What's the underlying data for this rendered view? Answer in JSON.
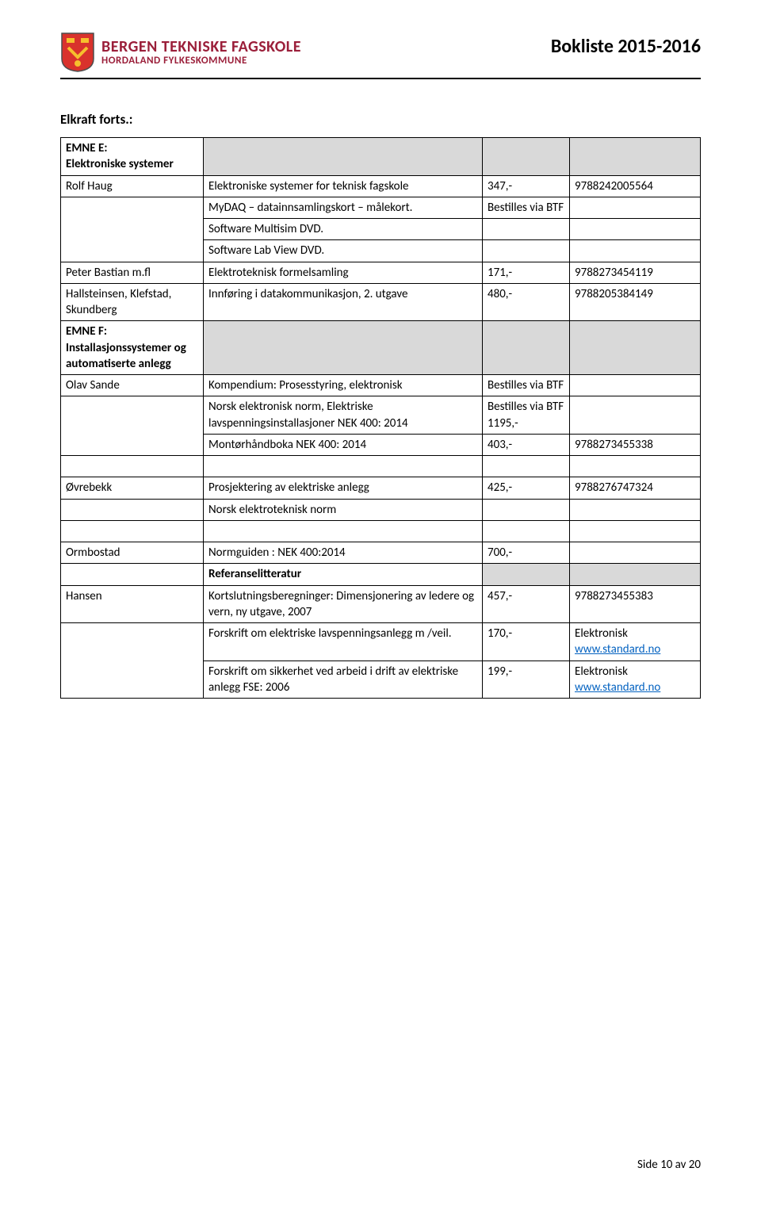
{
  "header": {
    "org_title": "BERGEN TEKNISKE FAGSKOLE",
    "org_sub": "HORDALAND FYLKESKOMMUNE",
    "booklist": "Bokliste 2015-2016",
    "shield_colors": {
      "main": "#d9322c",
      "accent": "#f6c02d",
      "border": "#4d4d4d"
    }
  },
  "section_heading": "Elkraft forts.:",
  "rows": [
    {
      "author": "EMNE E:\nElektroniske systemer",
      "author_bold": true,
      "title": "",
      "price": "",
      "isbn": "",
      "gray_cells": [
        "title",
        "price",
        "isbn"
      ]
    },
    {
      "author": "Rolf Haug",
      "title": "Elektroniske systemer for teknisk fagskole",
      "price": "347,-",
      "isbn": "9788242005564"
    },
    {
      "author_rowspan": 3,
      "author": "",
      "subrows": [
        {
          "title": "MyDAQ – datainnsamlingskort – målekort.",
          "price": "Bestilles via BTF",
          "isbn": ""
        },
        {
          "title": "Software Multisim DVD.",
          "price": "",
          "isbn": ""
        },
        {
          "title": "Software Lab View DVD.",
          "price": "",
          "isbn": ""
        }
      ]
    },
    {
      "author": "Peter Bastian m.fl",
      "title": "Elektroteknisk formelsamling",
      "price": "171,-",
      "isbn": "9788273454119"
    },
    {
      "author": "Hallsteinsen,  Klefstad, Skundberg",
      "title": "Innføring i datakommunikasjon, 2. utgave",
      "price": "480,-",
      "isbn": "9788205384149"
    },
    {
      "author": "EMNE F:\nInstallasjonssystemer og automatiserte anlegg",
      "author_bold": true,
      "title": "",
      "price": "",
      "isbn": "",
      "gray_cells": [
        "title",
        "price",
        "isbn"
      ]
    },
    {
      "author": "Olav Sande",
      "title": "Kompendium: Prosesstyring, elektronisk",
      "price": "Bestilles via BTF",
      "isbn": ""
    },
    {
      "author_rowspan": 2,
      "author": "",
      "subrows": [
        {
          "title": "Norsk elektronisk norm, Elektriske lavspenningsinstallasjoner NEK 400: 2014",
          "price": "Bestilles via BTF\n1195,-",
          "isbn": ""
        },
        {
          "title": "Montørhåndboka NEK 400: 2014",
          "price": "403,-",
          "isbn": "9788273455338"
        }
      ]
    },
    {
      "spacer": true
    },
    {
      "author": "Øvrebekk",
      "title": "Prosjektering av elektriske anlegg",
      "price": "425,-",
      "isbn": "9788276747324"
    },
    {
      "author_rowspan": 1,
      "author": "",
      "subrows": [
        {
          "title": "Norsk elektroteknisk norm",
          "price": "",
          "isbn": ""
        }
      ]
    },
    {
      "spacer": true
    },
    {
      "author": "Ormbostad",
      "title": "Normguiden : NEK 400:2014",
      "price": "700,-",
      "isbn": ""
    },
    {
      "author_rowspan": 1,
      "author": "",
      "subrows": [
        {
          "title": "Referanselitteratur",
          "title_bold": true,
          "price": "",
          "isbn": "",
          "gray_cells": [
            "price",
            "isbn"
          ]
        }
      ]
    },
    {
      "author": "Hansen",
      "title": "Kortslutningsberegninger: Dimensjonering av ledere og vern, ny utgave, 2007",
      "price": "457,-",
      "isbn": "9788273455383"
    },
    {
      "author_rowspan": 2,
      "author": "",
      "subrows": [
        {
          "title": "Forskrift om elektriske lavspenningsanlegg m /veil.",
          "price": "170,-",
          "isbn_html": "Elektronisk<br><a class='link' href='#'>www.standard.no</a>"
        },
        {
          "title": "Forskrift om sikkerhet ved arbeid i drift av elektriske anlegg   FSE: 2006",
          "price": "199,-",
          "isbn_html": "Elektronisk<br><a class='link' href='#'>www.standard.no</a>"
        }
      ]
    }
  ],
  "footer": {
    "text": "Side 10 av 20"
  }
}
